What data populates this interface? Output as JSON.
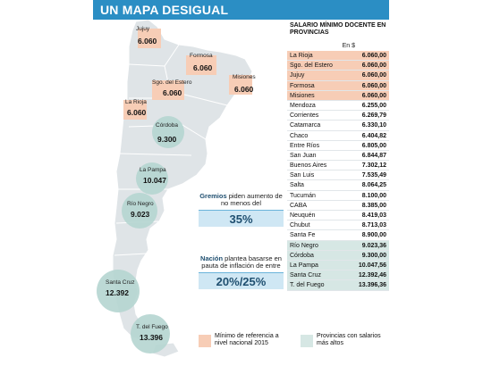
{
  "header": {
    "title": "UN MAPA DESIGUAL"
  },
  "colors": {
    "header": "#2b8ec4",
    "min_highlight": "#f7cdb6",
    "max_highlight": "#d6e7e4",
    "map_land": "#dfe4e7",
    "accent_text": "#1f4f70"
  },
  "map": {
    "provinces": [
      {
        "name": "Jujuy",
        "value": "6.060"
      },
      {
        "name": "Formosa",
        "value": "6.060"
      },
      {
        "name": "Sgo. del Estero",
        "value": "6.060"
      },
      {
        "name": "Misiones",
        "value": "6.060"
      },
      {
        "name": "La Rioja",
        "value": "6.060"
      },
      {
        "name": "Córdoba",
        "value": "9.300"
      },
      {
        "name": "La Pampa",
        "value": "10.047"
      },
      {
        "name": "Río Negro",
        "value": "9.023"
      },
      {
        "name": "Santa Cruz",
        "value": "12.392"
      },
      {
        "name": "T. del Fuego",
        "value": "13.396"
      }
    ]
  },
  "callouts": {
    "gremios": {
      "bold": "Gremios",
      "text": " piden aumento de no menos del",
      "value": "35%"
    },
    "nacion": {
      "bold": "Nación",
      "text": " plantea basarse en pauta de inflación de entre",
      "value": "20%/25%"
    }
  },
  "table": {
    "title": "SALARIO MÍNIMO DOCENTE EN PROVINCIAS",
    "unit": "En $",
    "rows": [
      {
        "name": "La Rioja",
        "value": "6.060,00",
        "tag": "min"
      },
      {
        "name": "Sgo. del Estero",
        "value": "6.060,00",
        "tag": "min"
      },
      {
        "name": "Jujuy",
        "value": "6.060,00",
        "tag": "min"
      },
      {
        "name": "Formosa",
        "value": "6.060,00",
        "tag": "min"
      },
      {
        "name": "Misiones",
        "value": "6.060,00",
        "tag": "min"
      },
      {
        "name": "Mendoza",
        "value": "6.255,00",
        "tag": ""
      },
      {
        "name": "Corrientes",
        "value": "6.269,79",
        "tag": ""
      },
      {
        "name": "Catamarca",
        "value": "6.330,10",
        "tag": ""
      },
      {
        "name": "Chaco",
        "value": "6.404,82",
        "tag": ""
      },
      {
        "name": "Entre Ríos",
        "value": "6.805,00",
        "tag": ""
      },
      {
        "name": "San Juan",
        "value": "6.844,87",
        "tag": ""
      },
      {
        "name": "Buenos Aires",
        "value": "7.302,12",
        "tag": ""
      },
      {
        "name": "San Luis",
        "value": "7.535,49",
        "tag": ""
      },
      {
        "name": "Salta",
        "value": "8.064,25",
        "tag": ""
      },
      {
        "name": "Tucumán",
        "value": "8.100,00",
        "tag": ""
      },
      {
        "name": "CABA",
        "value": "8.385,00",
        "tag": ""
      },
      {
        "name": "Neuquén",
        "value": "8.419,03",
        "tag": ""
      },
      {
        "name": "Chubut",
        "value": "8.713,03",
        "tag": ""
      },
      {
        "name": "Santa Fe",
        "value": "8.900,00",
        "tag": ""
      },
      {
        "name": "Río Negro",
        "value": "9.023,36",
        "tag": "max"
      },
      {
        "name": "Córdoba",
        "value": "9.300,00",
        "tag": "max"
      },
      {
        "name": "La Pampa",
        "value": "10.047,56",
        "tag": "max"
      },
      {
        "name": "Santa Cruz",
        "value": "12.392,46",
        "tag": "max"
      },
      {
        "name": "T. del Fuego",
        "value": "13.396,36",
        "tag": "max"
      }
    ]
  },
  "legend": {
    "min": "Mínimo de referencia a nivel nacional 2015",
    "max": "Provincias con salarios más altos"
  }
}
